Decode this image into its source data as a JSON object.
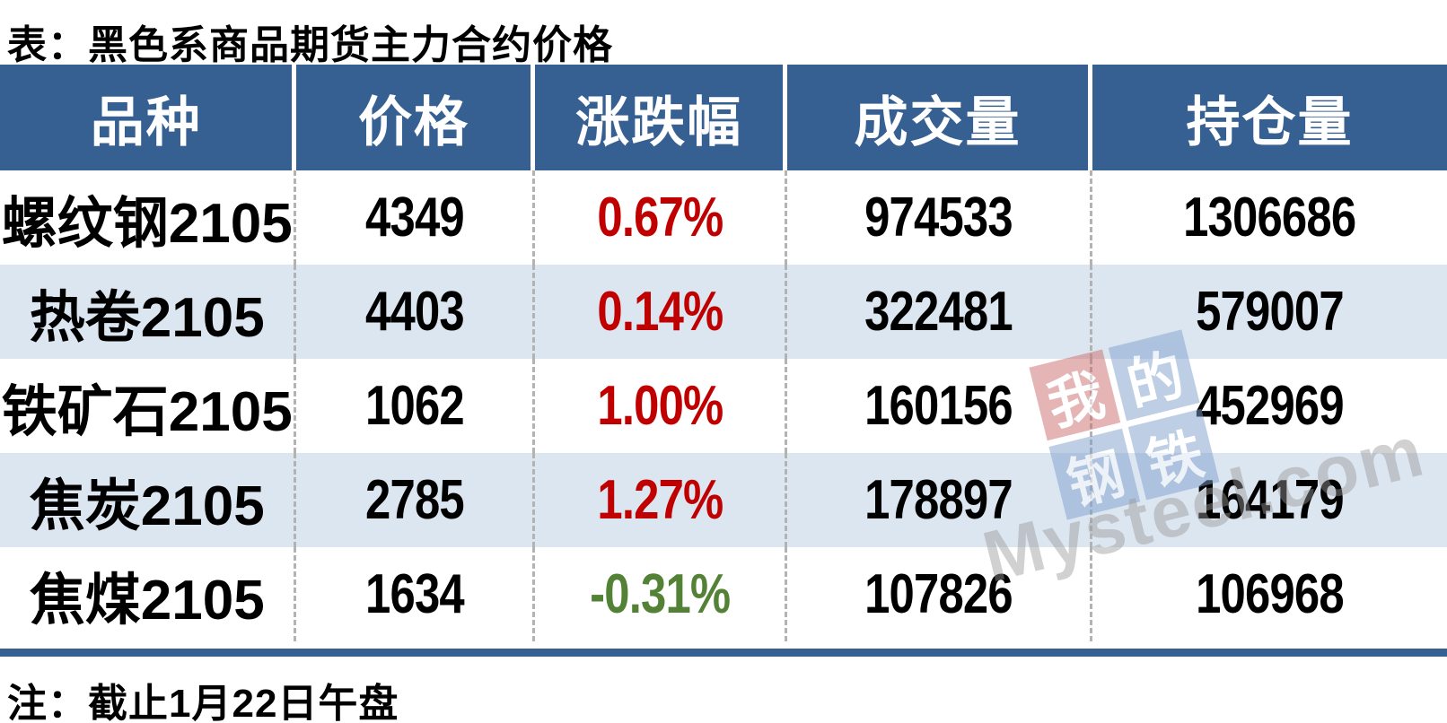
{
  "chart_data": {
    "type": "table",
    "title": "表：黑色系商品期货主力合约价格",
    "note": "注：截止1月22日午盘",
    "columns": [
      "品种",
      "价格",
      "涨跌幅",
      "成交量",
      "持仓量"
    ],
    "rows": [
      {
        "variety": "螺纹钢2105",
        "price": "4349",
        "change": "0.67%",
        "direction": "up",
        "volume": "974533",
        "open_interest": "1306686"
      },
      {
        "variety": "热卷2105",
        "price": "4403",
        "change": "0.14%",
        "direction": "up",
        "volume": "322481",
        "open_interest": "579007"
      },
      {
        "variety": "铁矿石2105",
        "price": "1062",
        "change": "1.00%",
        "direction": "up",
        "volume": "160156",
        "open_interest": "452969"
      },
      {
        "variety": "焦炭2105",
        "price": "2785",
        "change": "1.27%",
        "direction": "up",
        "volume": "178897",
        "open_interest": "164179"
      },
      {
        "variety": "焦煤2105",
        "price": "1634",
        "change": "-0.31%",
        "direction": "down",
        "volume": "107826",
        "open_interest": "106968"
      }
    ]
  },
  "watermark": {
    "brand_text": "Mysteel.com",
    "tiles": [
      {
        "char": "我",
        "style": "red"
      },
      {
        "char": "的",
        "style": "blue"
      },
      {
        "char": "钢",
        "style": "blue"
      },
      {
        "char": "铁",
        "style": "blue"
      }
    ]
  },
  "colors": {
    "header_bg": "#366092",
    "alt_row_bg": "#dce6f1",
    "up_text": "#c00000",
    "down_text": "#538135",
    "dash_line": "#b3b3b3",
    "wm_red": "#cc6e6e",
    "wm_blue": "#7d9fcc",
    "wm_gray": "#9a9a9a"
  }
}
